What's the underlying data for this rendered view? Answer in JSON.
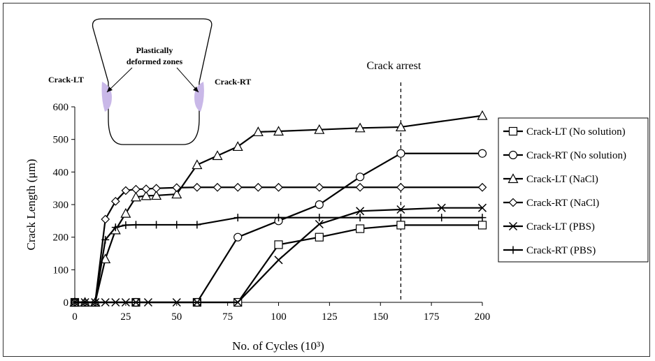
{
  "chart_data": {
    "type": "line",
    "xlabel": "No. of Cycles (10³)",
    "ylabel": "Crack Length (μm)",
    "xlim": [
      0,
      200
    ],
    "ylim": [
      0,
      600
    ],
    "xticks": [
      0,
      25,
      50,
      75,
      100,
      125,
      150,
      175,
      200
    ],
    "yticks": [
      0,
      100,
      200,
      300,
      400,
      500,
      600
    ],
    "grid": false,
    "legend_position": "right",
    "series": [
      {
        "name": "Crack-LT (No solution)",
        "marker": "square",
        "x": [
          0,
          30,
          60,
          80,
          100,
          120,
          140,
          160,
          200
        ],
        "y": [
          0,
          0,
          0,
          0,
          177,
          200,
          226,
          237,
          237
        ]
      },
      {
        "name": "Crack-RT (No solution)",
        "marker": "circle",
        "x": [
          0,
          30,
          60,
          80,
          100,
          120,
          140,
          160,
          200
        ],
        "y": [
          0,
          0,
          0,
          200,
          250,
          300,
          385,
          457,
          457
        ]
      },
      {
        "name": "Crack-LT (NaCl)",
        "marker": "triangle",
        "x": [
          0,
          5,
          10,
          15,
          20,
          25,
          30,
          35,
          40,
          50,
          60,
          70,
          80,
          90,
          100,
          120,
          140,
          160,
          200
        ],
        "y": [
          0,
          0,
          0,
          133,
          222,
          273,
          323,
          327,
          328,
          332,
          422,
          450,
          478,
          523,
          525,
          530,
          535,
          538,
          573
        ]
      },
      {
        "name": "Crack-RT (NaCl)",
        "marker": "diamond",
        "x": [
          0,
          5,
          10,
          15,
          20,
          25,
          30,
          35,
          40,
          50,
          60,
          70,
          80,
          90,
          100,
          120,
          140,
          160,
          200
        ],
        "y": [
          0,
          0,
          0,
          255,
          310,
          343,
          347,
          348,
          350,
          352,
          353,
          353,
          353,
          353,
          353,
          353,
          353,
          353,
          353
        ]
      },
      {
        "name": "Crack-LT (PBS)",
        "marker": "x",
        "x": [
          0,
          5,
          10,
          15,
          20,
          25,
          30,
          36,
          50,
          60,
          80,
          100,
          120,
          140,
          160,
          180,
          200
        ],
        "y": [
          0,
          0,
          0,
          0,
          0,
          0,
          0,
          0,
          0,
          0,
          0,
          130,
          240,
          280,
          285,
          290,
          290
        ]
      },
      {
        "name": "Crack-RT (PBS)",
        "marker": "plus",
        "x": [
          0,
          5,
          10,
          15,
          20,
          25,
          30,
          40,
          50,
          60,
          80,
          100,
          120,
          140,
          160,
          180,
          200
        ],
        "y": [
          0,
          0,
          0,
          192,
          230,
          237,
          238,
          238,
          238,
          238,
          260,
          260,
          260,
          260,
          260,
          260,
          260
        ]
      }
    ],
    "annotations": {
      "crack_arrest_x": 160,
      "crack_arrest_label": "Crack arrest"
    },
    "inset": {
      "zone_label_line1": "Plastically",
      "zone_label_line2": "deformed zones",
      "left_label": "Crack-LT",
      "right_label": "Crack-RT",
      "zone_color": "#c9b8e8"
    }
  }
}
